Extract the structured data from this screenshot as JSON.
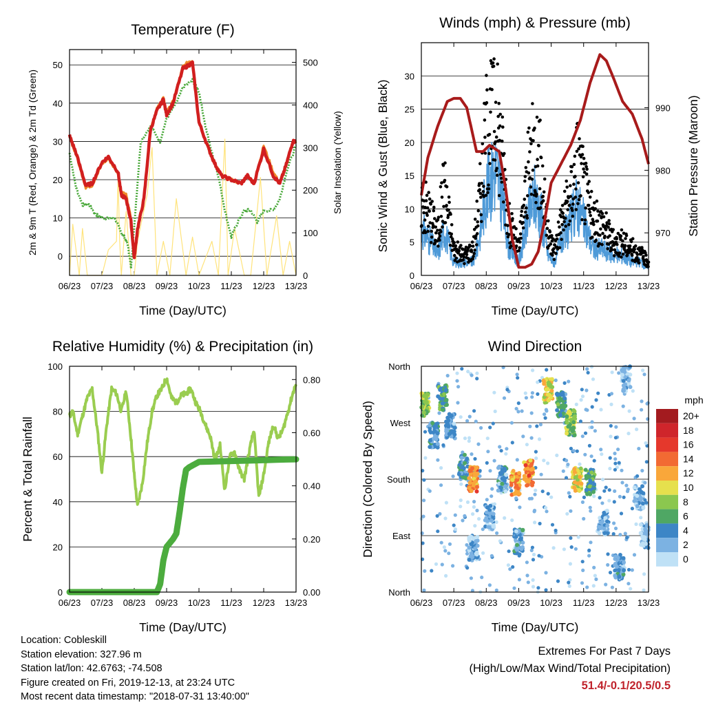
{
  "chart_data": [
    {
      "type": "line",
      "title": "Temperature (F)",
      "xlabel": "Time (Day/UTC)",
      "ylabel": "2m & 9m T (Red, Orange) & 2m Td (Green)",
      "y2label": "Solar Insolation (Yellow)",
      "x_ticks": [
        "06/23",
        "07/23",
        "08/23",
        "09/23",
        "10/23",
        "11/23",
        "12/23",
        "13/23"
      ],
      "ylim": [
        -5,
        54
      ],
      "y_ticks": [
        0,
        10,
        20,
        30,
        40,
        50
      ],
      "y2lim": [
        0,
        530
      ],
      "y2_ticks": [
        0,
        100,
        200,
        300,
        400,
        500
      ],
      "series": [
        {
          "color": "#d11f1f",
          "axis": "left",
          "x": [
            6.0,
            6.2,
            6.5,
            6.7,
            7.0,
            7.2,
            7.5,
            7.6,
            7.75,
            7.9,
            8.0,
            8.1,
            8.3,
            8.5,
            8.7,
            8.9,
            9.0,
            9.2,
            9.5,
            9.7,
            9.8,
            10.0,
            10.3,
            10.5,
            10.7,
            11.0,
            11.3,
            11.5,
            11.7,
            12.0,
            12.3,
            12.5,
            12.7,
            12.9,
            13.0
          ],
          "y": [
            31.5,
            27,
            18.5,
            19,
            24.5,
            26,
            22,
            16,
            15,
            9,
            -0.5,
            7,
            15,
            33,
            38,
            41,
            37,
            40,
            49,
            50,
            50.5,
            35,
            28,
            24,
            21,
            20,
            19,
            21,
            19,
            28,
            21,
            19,
            24,
            30,
            30
          ]
        },
        {
          "color": "#ee8a2a",
          "axis": "left",
          "x": [
            6.0,
            6.2,
            6.5,
            6.7,
            7.0,
            7.2,
            7.5,
            7.6,
            7.75,
            7.9,
            8.0,
            8.1,
            8.3,
            8.5,
            8.7,
            8.9,
            9.0,
            9.2,
            9.5,
            9.7,
            9.8,
            10.0,
            10.3,
            10.5,
            10.7,
            11.0,
            11.3,
            11.5,
            11.7,
            12.0,
            12.3,
            12.5,
            12.7,
            12.9,
            13.0
          ],
          "y": [
            31,
            26.5,
            18,
            18.5,
            24,
            25.5,
            21.5,
            17,
            16,
            10,
            0,
            7.5,
            15.5,
            33.5,
            38.5,
            41.5,
            37.5,
            40.5,
            49.5,
            51,
            51,
            35,
            28,
            24,
            21,
            20,
            19,
            21,
            19,
            29,
            22,
            19,
            24,
            30,
            30
          ]
        },
        {
          "color": "#49a83a",
          "axis": "left",
          "x": [
            6.0,
            6.2,
            6.4,
            6.6,
            6.8,
            7.0,
            7.2,
            7.4,
            7.6,
            7.7,
            7.8,
            7.9,
            8.0,
            8.2,
            8.5,
            8.8,
            9.0,
            9.3,
            9.5,
            9.8,
            10.0,
            10.2,
            10.4,
            10.6,
            10.8,
            11.0,
            11.2,
            11.4,
            11.6,
            11.8,
            12.0,
            12.3,
            12.5,
            12.7,
            13.0
          ],
          "y": [
            27,
            18,
            13.5,
            13.5,
            11,
            10,
            10,
            10,
            6,
            5,
            3,
            -3,
            8,
            30,
            34,
            30,
            36,
            40,
            44,
            46,
            43,
            34,
            27,
            21,
            12,
            5,
            9,
            12,
            12,
            9,
            12,
            12,
            15,
            22,
            29
          ]
        },
        {
          "color": "#ffe37a",
          "axis": "right",
          "x": [
            6.0,
            6.1,
            6.3,
            6.4,
            6.55,
            6.7,
            7.0,
            7.2,
            7.45,
            7.5,
            7.55,
            7.6,
            7.75,
            7.9,
            8.0,
            8.1,
            8.4,
            8.55,
            8.7,
            8.9,
            9.1,
            9.3,
            9.6,
            9.8,
            10.0,
            10.4,
            10.6,
            10.8,
            10.9,
            11.1,
            11.4,
            11.6,
            11.9,
            12.1,
            12.4,
            12.6,
            12.8,
            12.9,
            13.0
          ],
          "y": [
            0,
            120,
            0,
            110,
            0,
            0,
            0,
            60,
            80,
            230,
            80,
            0,
            150,
            0,
            0,
            80,
            190,
            300,
            0,
            80,
            0,
            180,
            0,
            90,
            0,
            80,
            0,
            320,
            0,
            110,
            0,
            0,
            230,
            0,
            140,
            0,
            80,
            40,
            0
          ]
        }
      ]
    },
    {
      "type": "line",
      "title": "Winds (mph) & Pressure (mb)",
      "xlabel": "Time (Day/UTC)",
      "ylabel": "Sonic Wind & Gust (Blue, Black)",
      "y2label": "Station Pressure (Maroon)",
      "x_ticks": [
        "06/23",
        "07/23",
        "08/23",
        "09/23",
        "10/23",
        "11/23",
        "12/23",
        "13/23"
      ],
      "ylim": [
        0,
        35
      ],
      "y_ticks": [
        0,
        5,
        10,
        15,
        20,
        25,
        30
      ],
      "y2lim": [
        963.2,
        1000.4
      ],
      "y2_ticks": [
        970,
        980,
        990
      ],
      "series": [
        {
          "color": "#000000",
          "axis": "left",
          "marker": "dot",
          "x": [
            6.0,
            6.3,
            6.5,
            6.7,
            7.0,
            7.3,
            7.6,
            7.8,
            8.0,
            8.3,
            8.5,
            8.7,
            9.0,
            9.3,
            9.5,
            9.7,
            9.9,
            10.1,
            10.3,
            10.6,
            10.8,
            11.0,
            11.3,
            11.6,
            11.9,
            12.2,
            12.5,
            12.8,
            13.0
          ],
          "y": [
            12,
            9,
            6,
            14,
            4,
            3,
            4,
            12,
            22,
            25,
            18,
            8,
            4,
            16,
            20,
            16,
            6,
            4,
            8,
            12,
            18,
            14,
            8,
            8,
            5,
            5,
            4,
            3,
            2
          ]
        },
        {
          "color": "#4e9ad8",
          "axis": "left",
          "x": [
            6.0,
            6.3,
            6.5,
            6.7,
            7.0,
            7.3,
            7.6,
            7.8,
            8.0,
            8.3,
            8.5,
            8.7,
            9.0,
            9.3,
            9.5,
            9.7,
            9.9,
            10.1,
            10.3,
            10.6,
            10.8,
            11.0,
            11.3,
            11.6,
            11.9,
            12.2,
            12.5,
            12.8,
            13.0
          ],
          "y": [
            7,
            5,
            3,
            7,
            2,
            2,
            2,
            6,
            13,
            16,
            11,
            4,
            2,
            9,
            12,
            9,
            3,
            2,
            5,
            8,
            11,
            8,
            4,
            4,
            3,
            3,
            2,
            2,
            1
          ]
        },
        {
          "color": "#a81b1b",
          "axis": "right",
          "x": [
            6.0,
            6.2,
            6.5,
            6.8,
            7.0,
            7.2,
            7.4,
            7.7,
            7.9,
            8.1,
            8.4,
            8.6,
            8.8,
            9.0,
            9.2,
            9.4,
            9.6,
            9.8,
            10.0,
            10.3,
            10.6,
            10.9,
            11.2,
            11.5,
            11.7,
            11.9,
            12.2,
            12.5,
            12.8,
            13.0
          ],
          "y": [
            976,
            982,
            987,
            991,
            991.5,
            991.5,
            990,
            983,
            983,
            984,
            983,
            977,
            969,
            964.5,
            964.5,
            965,
            967,
            972,
            978,
            981,
            984,
            988,
            994,
            998.5,
            997.5,
            995,
            991,
            989,
            985,
            981
          ]
        }
      ]
    },
    {
      "type": "line",
      "title": "Relative Humidity (%) & Precipitation (in)",
      "xlabel": "Time (Day/UTC)",
      "ylabel": "Percent & Total Rainfall",
      "x_ticks": [
        "06/23",
        "07/23",
        "08/23",
        "09/23",
        "10/23",
        "11/23",
        "12/23",
        "13/23"
      ],
      "ylim": [
        0,
        100
      ],
      "y_ticks": [
        0,
        20,
        40,
        60,
        80,
        100
      ],
      "y2lim": [
        0,
        0.85
      ],
      "y2_ticks": [
        "0.00",
        "0.20",
        "0.40",
        "0.60",
        "0.80"
      ],
      "series": [
        {
          "color": "#9acd50",
          "axis": "left",
          "x": [
            6.0,
            6.1,
            6.25,
            6.4,
            6.55,
            6.7,
            6.85,
            7.0,
            7.15,
            7.3,
            7.45,
            7.6,
            7.75,
            7.9,
            8.0,
            8.1,
            8.25,
            8.4,
            8.55,
            8.7,
            8.85,
            9.0,
            9.15,
            9.3,
            9.45,
            9.6,
            9.75,
            9.9,
            10.05,
            10.2,
            10.35,
            10.5,
            10.65,
            10.8,
            10.95,
            11.1,
            11.25,
            11.4,
            11.55,
            11.7,
            11.85,
            12.0,
            12.15,
            12.3,
            12.45,
            12.6,
            12.75,
            12.9,
            13.0
          ],
          "y": [
            78,
            80,
            70,
            78,
            86,
            90,
            73,
            53,
            74,
            90,
            88,
            80,
            89,
            68,
            52,
            38,
            48,
            66,
            80,
            87,
            90,
            95,
            86,
            84,
            87,
            88,
            90,
            84,
            80,
            74,
            69,
            58,
            65,
            45,
            60,
            62,
            54,
            50,
            62,
            72,
            42,
            52,
            66,
            74,
            68,
            72,
            80,
            88,
            92
          ]
        },
        {
          "color": "#4cac3e",
          "axis": "right",
          "marker": "dot",
          "x": [
            6.0,
            8.7,
            8.8,
            8.9,
            9.0,
            9.2,
            9.3,
            9.4,
            9.5,
            9.6,
            9.7,
            10.0,
            13.0
          ],
          "y": [
            0,
            0,
            0.03,
            0.12,
            0.17,
            0.2,
            0.22,
            0.3,
            0.39,
            0.46,
            0.47,
            0.49,
            0.5
          ]
        }
      ]
    },
    {
      "type": "scatter",
      "title": "Wind Direction",
      "xlabel": "Time (Day/UTC)",
      "ylabel": "Direction (Colored By Speed)",
      "x_ticks": [
        "06/23",
        "07/23",
        "08/23",
        "09/23",
        "10/23",
        "11/23",
        "12/23",
        "13/23"
      ],
      "y_ticks": [
        "North",
        "West",
        "South",
        "East",
        "North"
      ],
      "ylim": [
        0,
        360
      ],
      "legend": {
        "title": "mph",
        "labels": [
          "20+",
          "18",
          "16",
          "14",
          "12",
          "10",
          "8",
          "6",
          "4",
          "2",
          "0"
        ],
        "colors": [
          "#a31b1f",
          "#cf252b",
          "#e5382c",
          "#f26a33",
          "#f9a73a",
          "#e6e04d",
          "#8bc74f",
          "#4fa764",
          "#3d86c6",
          "#7cb2e2",
          "#bfe1f6"
        ]
      },
      "clusters": [
        {
          "x": 6.1,
          "y": 300,
          "speed": 8
        },
        {
          "x": 6.4,
          "y": 250,
          "speed": 4
        },
        {
          "x": 6.65,
          "y": 310,
          "speed": 6
        },
        {
          "x": 6.9,
          "y": 265,
          "speed": 3
        },
        {
          "x": 7.3,
          "y": 200,
          "speed": 4
        },
        {
          "x": 7.6,
          "y": 180,
          "speed": 13
        },
        {
          "x": 7.6,
          "y": 70,
          "speed": 2
        },
        {
          "x": 8.1,
          "y": 120,
          "speed": 2
        },
        {
          "x": 8.5,
          "y": 180,
          "speed": 3
        },
        {
          "x": 8.9,
          "y": 175,
          "speed": 12
        },
        {
          "x": 9.3,
          "y": 190,
          "speed": 13
        },
        {
          "x": 9.0,
          "y": 80,
          "speed": 3
        },
        {
          "x": 9.9,
          "y": 320,
          "speed": 10
        },
        {
          "x": 10.3,
          "y": 300,
          "speed": 5
        },
        {
          "x": 10.6,
          "y": 270,
          "speed": 8
        },
        {
          "x": 10.8,
          "y": 180,
          "speed": 10
        },
        {
          "x": 11.2,
          "y": 175,
          "speed": 6
        },
        {
          "x": 11.6,
          "y": 110,
          "speed": 2
        },
        {
          "x": 12.1,
          "y": 40,
          "speed": 3
        },
        {
          "x": 12.3,
          "y": 340,
          "speed": 2
        },
        {
          "x": 12.7,
          "y": 150,
          "speed": 2
        },
        {
          "x": 12.9,
          "y": 90,
          "speed": 1
        }
      ]
    }
  ],
  "info": {
    "location": "Location: Cobleskill",
    "elevation": "Station elevation: 327.96 m",
    "latlon": "Station lat/lon: 42.6763; -74.508",
    "created": "Figure created on Fri, 2019-12-13, at 23:24 UTC",
    "recent": "Most recent data timestamp: \"2018-07-31 13:40:00\""
  },
  "extremes": {
    "line1": "Extremes For Past 7 Days",
    "line2": "(High/Low/Max Wind/Total Precipitation)",
    "value": "51.4/-0.1/20.5/0.5"
  }
}
